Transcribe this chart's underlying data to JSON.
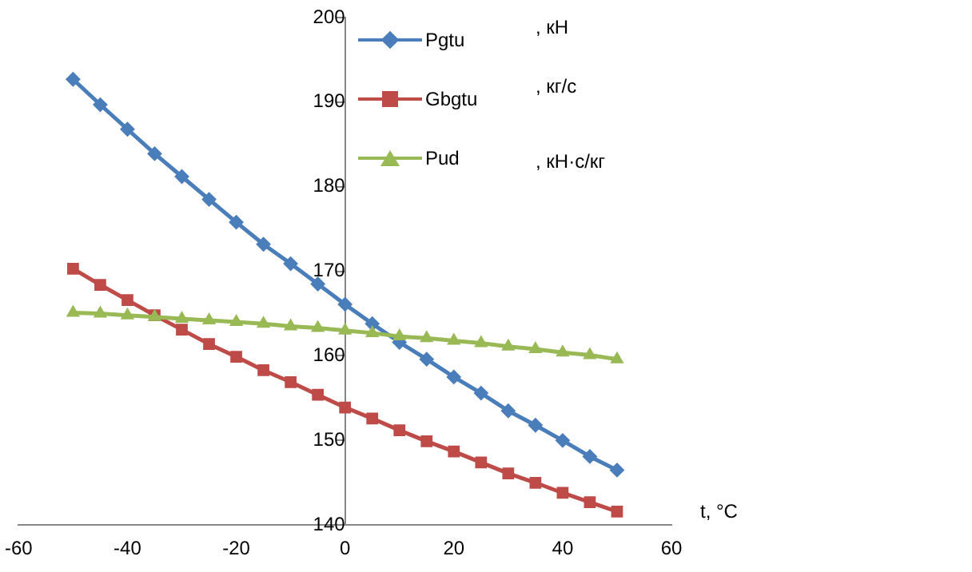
{
  "chart_data": {
    "type": "line",
    "xlabel": "t, °C",
    "x": [
      -50,
      -45,
      -40,
      -35,
      -30,
      -25,
      -20,
      -15,
      -10,
      -5,
      0,
      5,
      10,
      15,
      20,
      25,
      30,
      35,
      40,
      45,
      50
    ],
    "series": [
      {
        "name": "Pgtu",
        "color": "#4a7ebb",
        "marker": "diamond",
        "values": [
          192.7,
          189.7,
          186.8,
          183.9,
          181.2,
          178.5,
          175.8,
          173.2,
          170.9,
          168.5,
          166.1,
          163.8,
          161.6,
          159.6,
          157.5,
          155.6,
          153.5,
          151.8,
          150.0,
          148.1,
          146.5
        ]
      },
      {
        "name": "Gbgtu",
        "color": "#be4b48",
        "marker": "square",
        "values": [
          170.3,
          168.4,
          166.6,
          164.8,
          163.1,
          161.4,
          159.9,
          158.3,
          156.9,
          155.4,
          153.9,
          152.6,
          151.2,
          149.9,
          148.7,
          147.4,
          146.1,
          145.0,
          143.8,
          142.7,
          141.6
        ]
      },
      {
        "name": "Pud",
        "color": "#98b954",
        "marker": "triangle",
        "values": [
          165.1,
          165.0,
          164.8,
          164.6,
          164.4,
          164.2,
          164.0,
          163.8,
          163.5,
          163.3,
          163.0,
          162.7,
          162.3,
          162.1,
          161.8,
          161.5,
          161.1,
          160.8,
          160.4,
          160.1,
          159.6
        ]
      }
    ],
    "annotations": [
      ", кН",
      ", кг/с",
      ", кН·с/кг"
    ],
    "xlim": [
      -60,
      60
    ],
    "xticks": [
      -60,
      -40,
      -20,
      0,
      20,
      40,
      60
    ],
    "ylim": [
      140,
      200
    ],
    "yticks": [
      140,
      150,
      160,
      170,
      180,
      190,
      200
    ],
    "grid": false,
    "legend": "top right"
  }
}
